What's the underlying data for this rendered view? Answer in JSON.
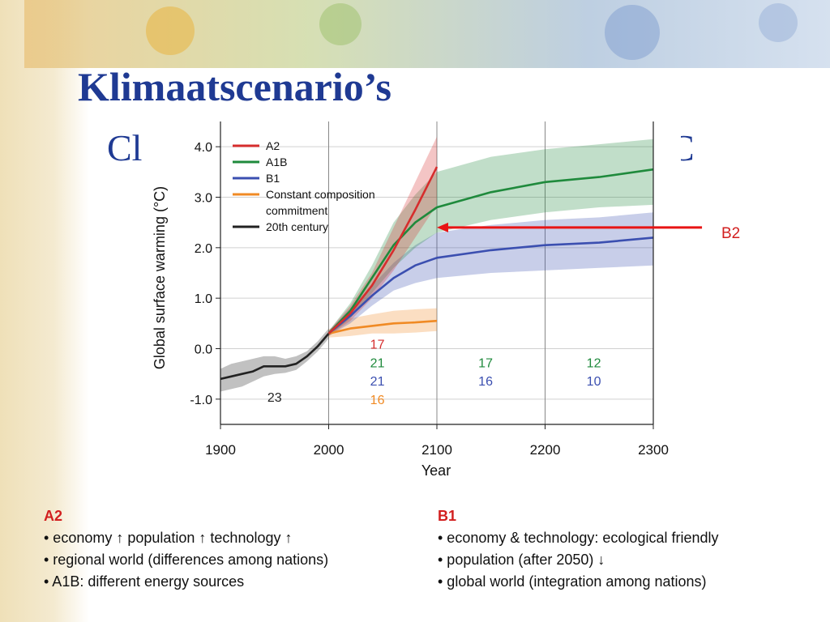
{
  "slide": {
    "title": "Klimaatscenario’s",
    "subtitle_left": "Cl",
    "subtitle_right": "C",
    "arrow_label": "B2"
  },
  "colors": {
    "A2": "#d62d2d",
    "A1B": "#1f8a3c",
    "B1": "#3b4fb0",
    "Constant": "#f08a24",
    "20th": "#222222",
    "arrow": "#e81414",
    "title": "#1f3a93"
  },
  "notes": {
    "left": {
      "head": "A2",
      "lines": [
        "• economy ↑ population ↑ technology ↑",
        "• regional world (differences among nations)",
        "• A1B: different energy sources"
      ]
    },
    "right": {
      "head": "B1",
      "lines": [
        "• economy & technology: ecological friendly",
        "• population (after 2050) ↓",
        "• global world (integration among nations)"
      ]
    }
  },
  "chart_data": {
    "type": "line",
    "xlabel": "Year",
    "ylabel": "Global surface warming (°C)",
    "xlim": [
      1900,
      2300
    ],
    "ylim": [
      -1.5,
      4.5
    ],
    "xticks": [
      1900,
      2000,
      2100,
      2200,
      2300
    ],
    "yticks": [
      -1.0,
      0.0,
      1.0,
      2.0,
      3.0,
      4.0
    ],
    "ytick_labels": [
      "-1.0",
      "0.0",
      "1.0",
      "2.0",
      "3.0",
      "4.0"
    ],
    "vlines": [
      2000,
      2100,
      2200
    ],
    "legend_position": "top-left",
    "series": [
      {
        "name": "A2",
        "key": "A2",
        "x": [
          2000,
          2020,
          2040,
          2060,
          2080,
          2100
        ],
        "y": [
          0.3,
          0.7,
          1.25,
          1.95,
          2.75,
          3.6
        ],
        "low": [
          0.25,
          0.55,
          1.0,
          1.55,
          2.2,
          2.85
        ],
        "high": [
          0.35,
          0.85,
          1.5,
          2.4,
          3.3,
          4.2
        ]
      },
      {
        "name": "A1B",
        "key": "A1B",
        "x": [
          2000,
          2020,
          2040,
          2060,
          2080,
          2100,
          2150,
          2200,
          2250,
          2300
        ],
        "y": [
          0.3,
          0.75,
          1.4,
          2.05,
          2.5,
          2.8,
          3.1,
          3.3,
          3.4,
          3.55
        ],
        "low": [
          0.25,
          0.6,
          1.1,
          1.6,
          2.0,
          2.3,
          2.55,
          2.7,
          2.8,
          2.85
        ],
        "high": [
          0.35,
          0.9,
          1.65,
          2.5,
          3.05,
          3.5,
          3.8,
          3.95,
          4.05,
          4.15
        ]
      },
      {
        "name": "B1",
        "key": "B1",
        "x": [
          2000,
          2020,
          2040,
          2060,
          2080,
          2100,
          2150,
          2200,
          2250,
          2300
        ],
        "y": [
          0.3,
          0.65,
          1.05,
          1.4,
          1.65,
          1.8,
          1.95,
          2.05,
          2.1,
          2.2
        ],
        "low": [
          0.25,
          0.5,
          0.85,
          1.15,
          1.3,
          1.4,
          1.5,
          1.55,
          1.6,
          1.65
        ],
        "high": [
          0.35,
          0.8,
          1.25,
          1.7,
          2.05,
          2.3,
          2.45,
          2.55,
          2.6,
          2.7
        ]
      },
      {
        "name": "Constant composition commitment",
        "key": "Constant",
        "x": [
          2000,
          2020,
          2040,
          2060,
          2080,
          2100
        ],
        "y": [
          0.3,
          0.4,
          0.45,
          0.5,
          0.52,
          0.55
        ],
        "low": [
          0.22,
          0.25,
          0.3,
          0.3,
          0.32,
          0.35
        ],
        "high": [
          0.38,
          0.6,
          0.68,
          0.75,
          0.78,
          0.8
        ]
      },
      {
        "name": "20th century",
        "key": "20th",
        "x": [
          1900,
          1910,
          1920,
          1930,
          1940,
          1950,
          1960,
          1970,
          1980,
          1990,
          2000
        ],
        "y": [
          -0.6,
          -0.55,
          -0.5,
          -0.45,
          -0.35,
          -0.35,
          -0.35,
          -0.3,
          -0.15,
          0.05,
          0.3
        ],
        "low": [
          -0.85,
          -0.8,
          -0.75,
          -0.65,
          -0.55,
          -0.5,
          -0.48,
          -0.42,
          -0.25,
          -0.05,
          0.2
        ],
        "high": [
          -0.4,
          -0.3,
          -0.25,
          -0.2,
          -0.15,
          -0.15,
          -0.2,
          -0.15,
          -0.05,
          0.15,
          0.4
        ]
      }
    ],
    "legend": [
      {
        "key": "A2",
        "lines": [
          "A2"
        ]
      },
      {
        "key": "A1B",
        "lines": [
          "A1B"
        ]
      },
      {
        "key": "B1",
        "lines": [
          "B1"
        ]
      },
      {
        "key": "Constant",
        "lines": [
          "Constant composition",
          "commitment"
        ]
      },
      {
        "key": "20th",
        "lines": [
          "20th century"
        ]
      }
    ],
    "annotations": [
      {
        "text": "23",
        "x": 1950,
        "y": -1.05,
        "key": "20th"
      },
      {
        "text": "17",
        "x": 2045,
        "y": 0.0,
        "key": "A2"
      },
      {
        "text": "21",
        "x": 2045,
        "y": -0.37,
        "key": "A1B"
      },
      {
        "text": "21",
        "x": 2045,
        "y": -0.73,
        "key": "B1"
      },
      {
        "text": "16",
        "x": 2045,
        "y": -1.1,
        "key": "Constant"
      },
      {
        "text": "17",
        "x": 2145,
        "y": -0.37,
        "key": "A1B"
      },
      {
        "text": "16",
        "x": 2145,
        "y": -0.73,
        "key": "B1"
      },
      {
        "text": "12",
        "x": 2245,
        "y": -0.37,
        "key": "A1B"
      },
      {
        "text": "10",
        "x": 2245,
        "y": -0.73,
        "key": "B1"
      }
    ],
    "arrow": {
      "from_year": 2345,
      "to_year": 2100,
      "y": 2.4
    }
  }
}
